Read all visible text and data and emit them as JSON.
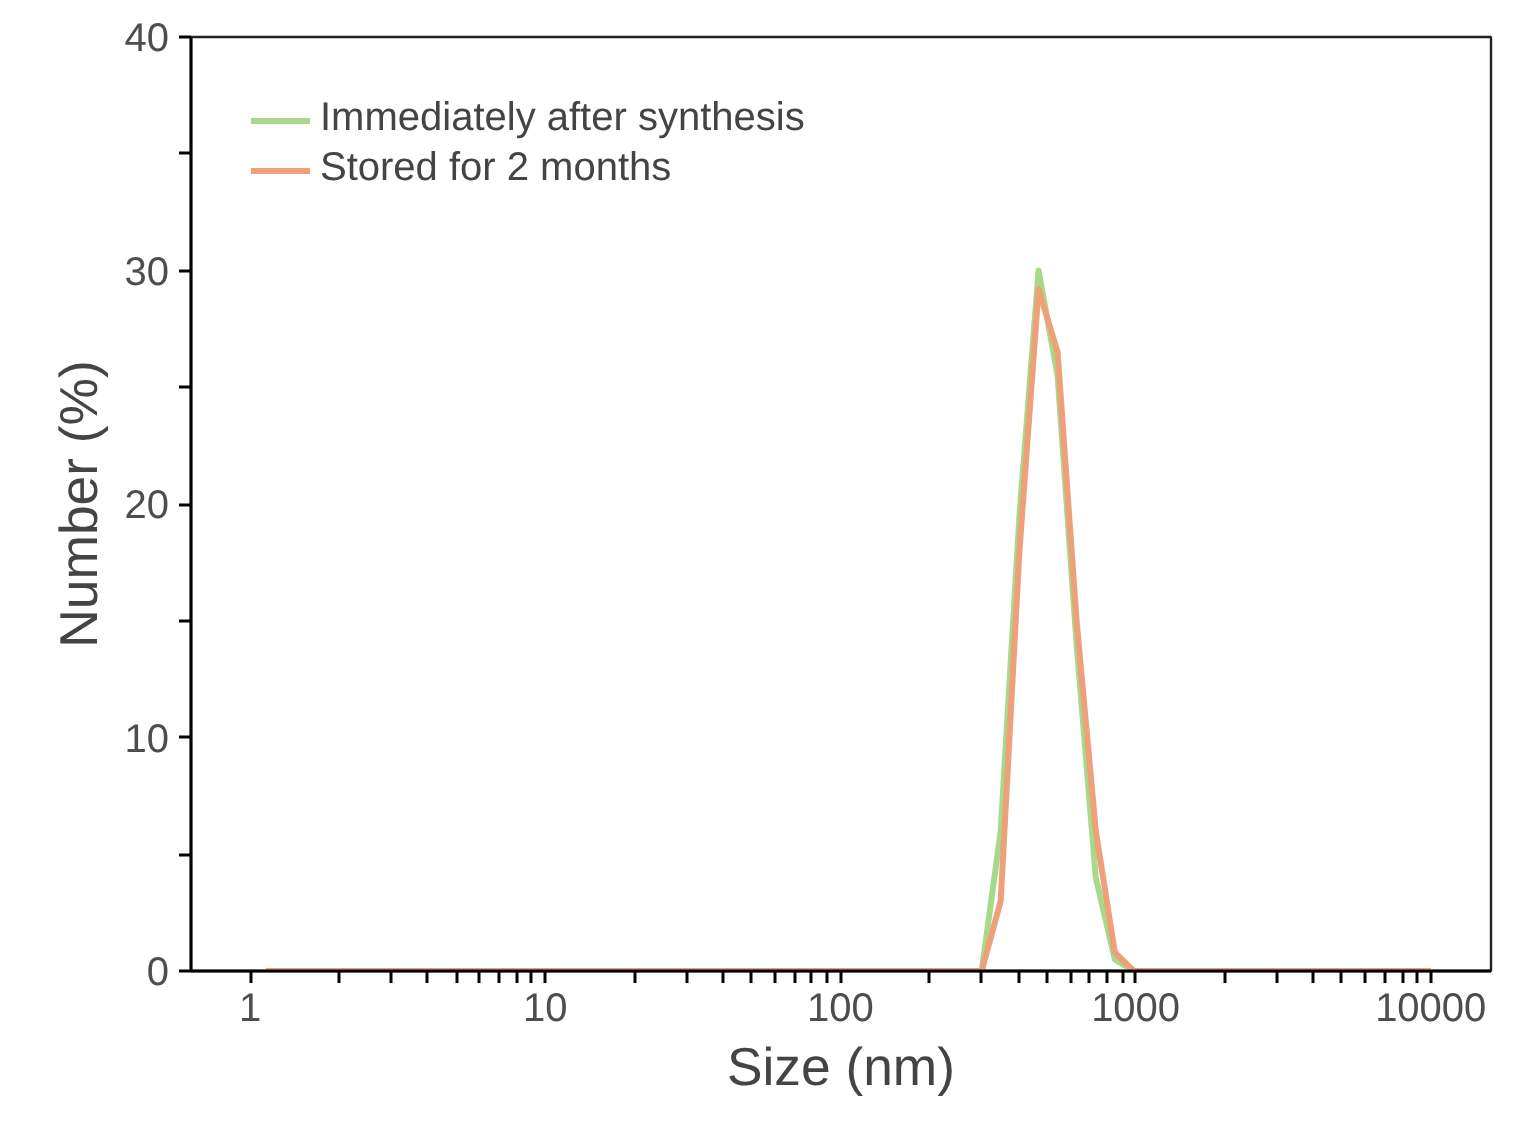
{
  "chart_data": {
    "type": "line",
    "xlabel": "Size (nm)",
    "ylabel": "Number (%)",
    "log": "x",
    "x": [
      1.13,
      301,
      349,
      404,
      469,
      544,
      631,
      733,
      850,
      986,
      10000
    ],
    "series": [
      {
        "name": "Immediately after synthesis",
        "color": "#a6d98a",
        "values": [
          0,
          0,
          6,
          19.5,
          30,
          25.5,
          14,
          4,
          0.5,
          0,
          0
        ]
      },
      {
        "name": "Stored for 2 months",
        "color": "#eda07a",
        "values": [
          0,
          0,
          3,
          18,
          29.2,
          26.5,
          15,
          6,
          0.8,
          0,
          0
        ]
      }
    ],
    "xlim": [
      0.63,
      16000
    ],
    "ylim": [
      0,
      40
    ],
    "xticks": [
      1,
      {
        "value": 2,
        "label": null
      },
      {
        "value": 3,
        "label": null
      },
      {
        "value": 4,
        "label": null
      },
      {
        "value": 5,
        "label": null
      },
      {
        "value": 6,
        "label": null
      },
      {
        "value": 7,
        "label": null
      },
      {
        "value": 8,
        "label": null
      },
      {
        "value": 9,
        "label": null
      },
      10,
      {
        "value": 20,
        "label": null
      },
      {
        "value": 30,
        "label": null
      },
      {
        "value": 40,
        "label": null
      },
      {
        "value": 50,
        "label": null
      },
      {
        "value": 60,
        "label": null
      },
      {
        "value": 70,
        "label": null
      },
      {
        "value": 80,
        "label": null
      },
      {
        "value": 90,
        "label": null
      },
      100,
      {
        "value": 200,
        "label": null
      },
      {
        "value": 300,
        "label": null
      },
      {
        "value": 400,
        "label": null
      },
      {
        "value": 500,
        "label": null
      },
      {
        "value": 600,
        "label": null
      },
      {
        "value": 700,
        "label": null
      },
      {
        "value": 800,
        "label": null
      },
      {
        "value": 900,
        "label": null
      },
      1000,
      {
        "value": 2000,
        "label": null
      },
      {
        "value": 3000,
        "label": null
      },
      {
        "value": 4000,
        "label": null
      },
      {
        "value": 5000,
        "label": null
      },
      {
        "value": 6000,
        "label": null
      },
      {
        "value": 7000,
        "label": null
      },
      {
        "value": 8000,
        "label": null
      },
      {
        "value": 9000,
        "label": null
      },
      10000
    ],
    "yticks": [
      0,
      {
        "value": 5,
        "label": null
      },
      10,
      {
        "value": 15,
        "label": null
      },
      20,
      {
        "value": 25,
        "label": null
      },
      30,
      {
        "value": 35,
        "label": null
      },
      40
    ],
    "grid": false,
    "legend": "top left",
    "line_style": "solid",
    "marker": "none"
  }
}
